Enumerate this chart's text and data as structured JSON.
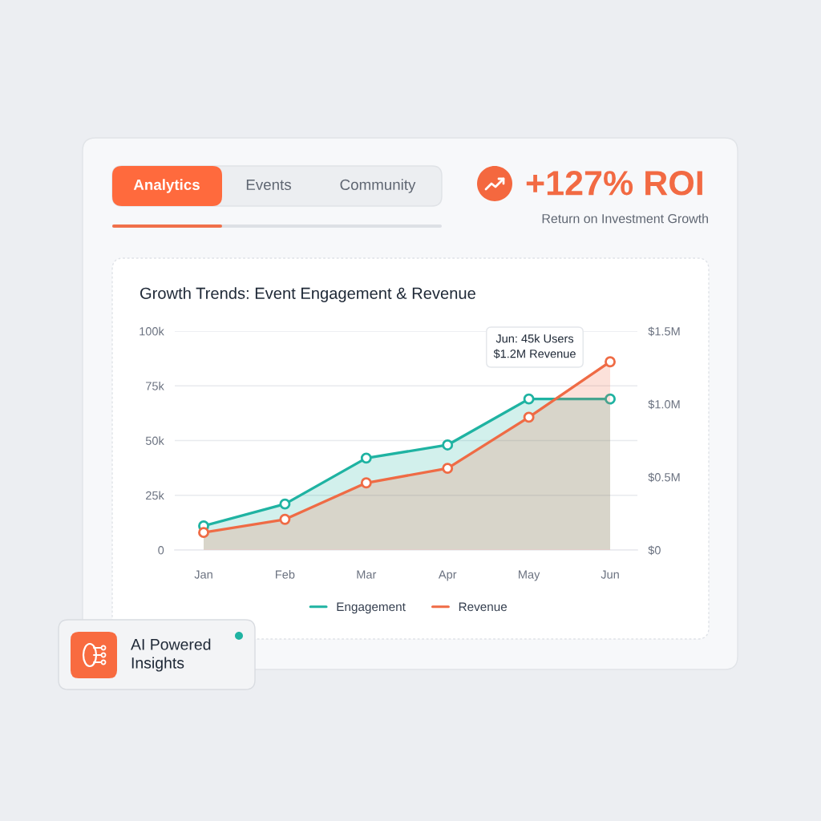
{
  "chart_data": {
    "type": "area",
    "title": "Growth Trends: Event Engagement & Revenue",
    "categories": [
      "Jan",
      "Feb",
      "Mar",
      "Apr",
      "May",
      "Jun"
    ],
    "series": [
      {
        "name": "Engagement",
        "color": "#1fb3a2",
        "values": [
          11,
          21,
          42,
          48,
          69,
          69
        ]
      },
      {
        "name": "Revenue",
        "color": "#ef6b45",
        "axis": "y2",
        "values": [
          0.12,
          0.21,
          0.46,
          0.56,
          0.91,
          1.29
        ]
      }
    ],
    "ylim": [
      0,
      100
    ],
    "yticks": [
      0,
      {
        "value": 25,
        "label": "25k"
      },
      {
        "value": 50,
        "label": "50k"
      },
      {
        "value": 75,
        "label": "75k"
      },
      {
        "value": 100,
        "label": "100k"
      }
    ],
    "y2lim": [
      0,
      1.5
    ],
    "y2ticks": [
      {
        "value": 0,
        "label": "$0"
      },
      {
        "value": 0.5,
        "label": "$0.5M"
      },
      {
        "value": 1.0,
        "label": "$1.0M"
      },
      {
        "value": 1.5,
        "label": "$1.5M"
      }
    ],
    "grid": "y",
    "legend": "bottom",
    "marker": "circle",
    "line_style": "solid",
    "annotations": [
      "Analytics",
      "Events",
      "Community",
      "+127% ROI",
      "Return on Investment Growth",
      "AI Powered\nInsights",
      "Jun: 45k Users\n$1.2M Revenue"
    ]
  }
}
